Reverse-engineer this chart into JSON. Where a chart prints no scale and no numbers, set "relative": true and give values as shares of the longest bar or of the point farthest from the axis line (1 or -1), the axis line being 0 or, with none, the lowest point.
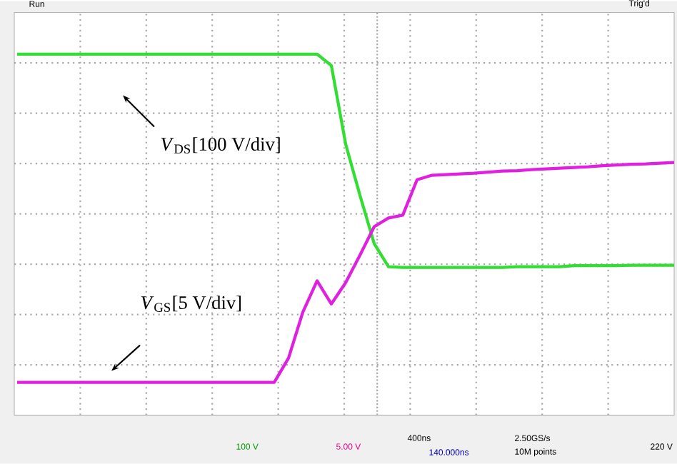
{
  "chart_data": {
    "type": "line",
    "relative": true,
    "grid": true,
    "categories": [
      null,
      null,
      null,
      null,
      null,
      null,
      null,
      null,
      null,
      null,
      null,
      null,
      null,
      null,
      null,
      null,
      null,
      null,
      null,
      null,
      null,
      null,
      null,
      null,
      null,
      null,
      null,
      null,
      null,
      null,
      null,
      null,
      null,
      null,
      null,
      null,
      null,
      null,
      null,
      null,
      null,
      null,
      null,
      null,
      null,
      null,
      null
    ],
    "series": [
      {
        "color": "#33dd33",
        "values": [
          1,
          1,
          1,
          1,
          1,
          1,
          1,
          1,
          1,
          1,
          1,
          1,
          1,
          1,
          1,
          1,
          1,
          1,
          1,
          1,
          1,
          1,
          0.968,
          0.751,
          0.609,
          0.475,
          0.411,
          0.409,
          0.409,
          0.409,
          0.409,
          0.409,
          0.409,
          0.409,
          0.409,
          0.411,
          0.411,
          0.411,
          0.411,
          0.414,
          0.414,
          0.414,
          0.414,
          0.415,
          0.415,
          0.415,
          0.415
        ]
      },
      {
        "color": "#e020e0",
        "values": [
          0.091,
          0.091,
          0.091,
          0.091,
          0.091,
          0.091,
          0.091,
          0.091,
          0.091,
          0.091,
          0.091,
          0.091,
          0.091,
          0.091,
          0.091,
          0.091,
          0.091,
          0.091,
          0.091,
          0.158,
          0.285,
          0.372,
          0.308,
          0.367,
          0.443,
          0.522,
          0.546,
          0.554,
          0.652,
          0.664,
          0.666,
          0.668,
          0.67,
          0.673,
          0.676,
          0.677,
          0.68,
          0.682,
          0.684,
          0.686,
          0.688,
          0.691,
          0.693,
          0.695,
          0.696,
          0.698,
          0.7
        ]
      }
    ],
    "annotations": [
      "*V*$_{DS}$[100 V/div]",
      "*V*$_{GS}$[5 V/div]",
      "Run",
      "Trig'd",
      "100 V",
      "5.00 V",
      "400ns",
      "140.000ns",
      "2.50GS/s",
      "10M points",
      "220 V"
    ]
  }
}
